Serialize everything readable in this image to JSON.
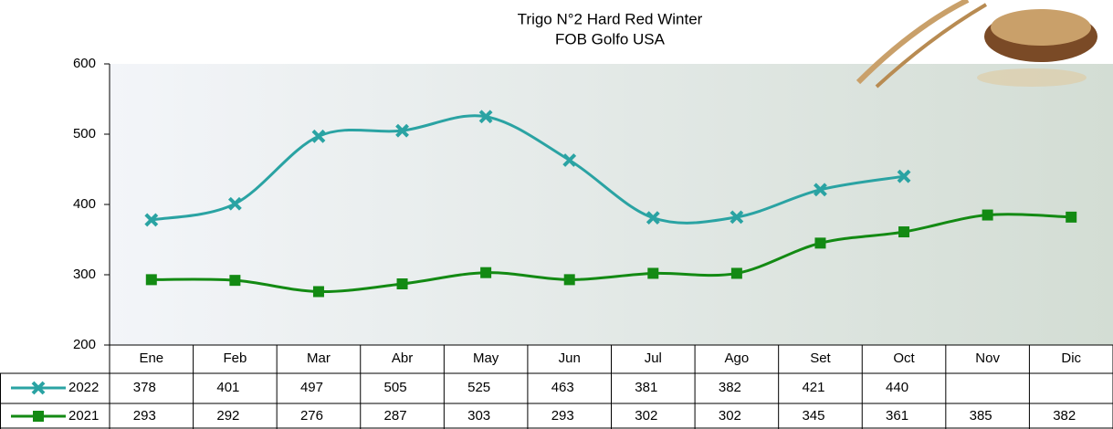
{
  "chart_data": {
    "type": "line",
    "title": "Trigo N°2 Hard Red Winter",
    "subtitle": "FOB Golfo USA",
    "categories": [
      "Ene",
      "Feb",
      "Mar",
      "Abr",
      "May",
      "Jun",
      "Jul",
      "Ago",
      "Set",
      "Oct",
      "Nov",
      "Dic"
    ],
    "series": [
      {
        "name": "2022",
        "color": "#2aa3a3",
        "marker": "x",
        "values": [
          378,
          401,
          497,
          505,
          525,
          463,
          381,
          382,
          421,
          440,
          null,
          null
        ]
      },
      {
        "name": "2021",
        "color": "#138a13",
        "marker": "square",
        "values": [
          293,
          292,
          276,
          287,
          303,
          293,
          302,
          302,
          345,
          361,
          385,
          382
        ]
      }
    ],
    "ylim": [
      200,
      600
    ],
    "yticks": [
      200,
      300,
      400,
      500,
      600
    ]
  }
}
